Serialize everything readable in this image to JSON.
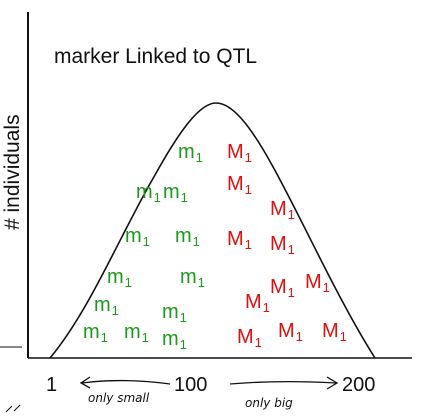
{
  "title": "marker Linked to QTL",
  "y_axis_label": "# individuals",
  "x_ticks": [
    "1",
    "100",
    "200"
  ],
  "annotations": [
    "only small",
    "only big"
  ],
  "colors": {
    "small_allele": "#1a9a1a",
    "big_allele": "#e01010",
    "ink": "#111111"
  },
  "small_allele": {
    "base": "m",
    "sub": "1"
  },
  "big_allele": {
    "base": "M",
    "sub": "1"
  }
}
